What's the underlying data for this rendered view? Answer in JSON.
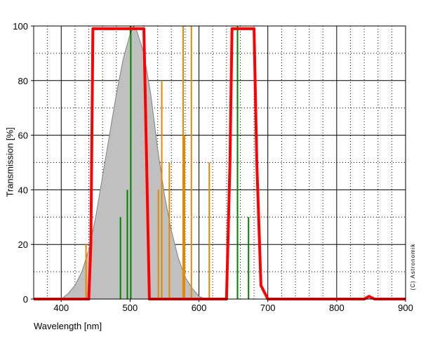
{
  "chart_data": {
    "type": "line",
    "xlabel": "Wavelength [nm]",
    "ylabel": "Transmission [%]",
    "annotation": "(C) Astronomik",
    "xlim": [
      360,
      900
    ],
    "ylim": [
      0,
      100
    ],
    "xticks": [
      400,
      500,
      600,
      700,
      800,
      900
    ],
    "yticks": [
      0,
      20,
      40,
      60,
      80,
      100
    ],
    "xminorticks": [
      380,
      420,
      440,
      460,
      480,
      520,
      540,
      560,
      580,
      620,
      640,
      660,
      680,
      720,
      740,
      760,
      780,
      820,
      840,
      860,
      880
    ],
    "yminorticks": [
      10,
      30,
      50,
      70,
      90
    ],
    "grid": true,
    "series": [
      {
        "style": "area",
        "color": "#808080",
        "fill": "#c0c0c0",
        "x": [
          400,
          410,
          420,
          430,
          440,
          450,
          460,
          470,
          480,
          490,
          500,
          505,
          510,
          520,
          530,
          540,
          550,
          560,
          570,
          580,
          590,
          600,
          610
        ],
        "values": [
          0,
          2,
          5,
          10,
          18,
          30,
          45,
          60,
          75,
          88,
          97,
          100,
          98,
          90,
          75,
          55,
          38,
          25,
          15,
          8,
          4,
          1,
          0
        ]
      },
      {
        "style": "stem",
        "color": "#e08a00",
        "x": [
          436,
          541,
          546,
          557,
          577,
          579,
          589,
          615
        ],
        "values": [
          20,
          40,
          80,
          50,
          100,
          60,
          100,
          50
        ]
      },
      {
        "style": "stem",
        "color": "#008000",
        "x": [
          486,
          496,
          501,
          656,
          672
        ],
        "values": [
          30,
          40,
          100,
          100,
          30
        ]
      },
      {
        "style": "line",
        "color": "#ff0000",
        "x": [
          360,
          440,
          443,
          446,
          520,
          524,
          528,
          640,
          645,
          648,
          680,
          684,
          690,
          700,
          840,
          847,
          855,
          900
        ],
        "values": [
          0,
          0,
          20,
          99,
          99,
          50,
          0,
          0,
          50,
          99,
          99,
          50,
          5,
          0,
          0,
          1,
          0,
          0
        ]
      }
    ]
  }
}
